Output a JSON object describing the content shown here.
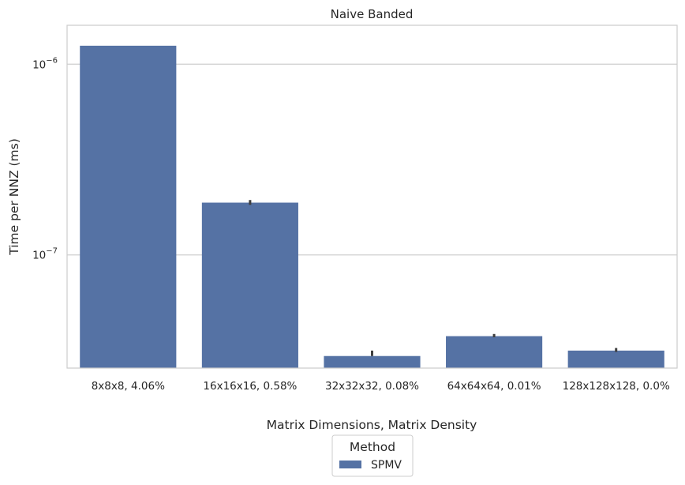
{
  "chart_data": {
    "type": "bar",
    "title": "Naive Banded",
    "xlabel": "Matrix Dimensions, Matrix Density",
    "ylabel": "Time per NNZ (ms)",
    "yscale": "log",
    "ylim": [
      2.55e-08,
      1.6e-06
    ],
    "yticks": [
      {
        "value": 1e-06,
        "base": "10",
        "exp": "−6"
      },
      {
        "value": 1e-07,
        "base": "10",
        "exp": "−7"
      }
    ],
    "grid": "horizontal",
    "categories": [
      "8x8x8, 4.06%",
      "16x16x16, 0.58%",
      "32x32x32, 0.08%",
      "64x64x64, 0.01%",
      "128x128x128, 0.0%"
    ],
    "series": [
      {
        "name": "SPMV",
        "values": [
          1.25e-06,
          1.88e-07,
          2.95e-08,
          3.75e-08,
          3.15e-08
        ],
        "error_low": [
          1.25e-06,
          1.83e-07,
          2.95e-08,
          3.7e-08,
          3.1e-08
        ],
        "error_high": [
          1.25e-06,
          1.94e-07,
          3.15e-08,
          3.85e-08,
          3.25e-08
        ]
      }
    ],
    "legend": {
      "title": "Method",
      "placement": "below"
    }
  },
  "colors": {
    "bar": "#5572a4",
    "error": "#3f3f3f",
    "grid": "#cfcfcf",
    "axes": "#cccccc"
  }
}
